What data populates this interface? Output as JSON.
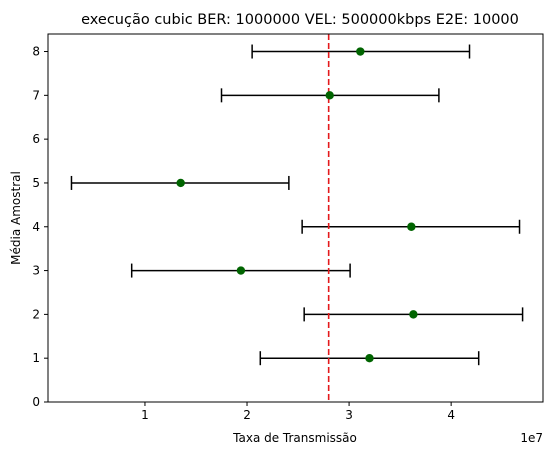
{
  "chart_data": {
    "type": "scatter",
    "title": "execução cubic BER: 1000000 VEL: 500000kbps E2E: 10000",
    "xlabel": "Taxa de Transmissão",
    "ylabel": "Média Amostral",
    "x_offset_label": "1e7",
    "xlim": [
      0.05,
      4.9
    ],
    "ylim": [
      0,
      8.4
    ],
    "x_ticks": [
      1,
      2,
      3,
      4
    ],
    "y_ticks": [
      0,
      1,
      2,
      3,
      4,
      5,
      6,
      7,
      8
    ],
    "x_tick_labels": [
      "1",
      "2",
      "3",
      "4"
    ],
    "y_tick_labels": [
      "0",
      "1",
      "2",
      "3",
      "4",
      "5",
      "6",
      "7",
      "8"
    ],
    "reference_line": {
      "x": 2.8,
      "color": "#e41a1c",
      "style": "dashed"
    },
    "points": [
      {
        "y": 1,
        "mean": 3.2,
        "low": 2.13,
        "high": 4.27
      },
      {
        "y": 2,
        "mean": 3.63,
        "low": 2.56,
        "high": 4.7
      },
      {
        "y": 3,
        "mean": 1.94,
        "low": 0.87,
        "high": 3.01
      },
      {
        "y": 4,
        "mean": 3.61,
        "low": 2.54,
        "high": 4.67
      },
      {
        "y": 5,
        "mean": 1.35,
        "low": 0.28,
        "high": 2.41
      },
      {
        "y": 7,
        "mean": 2.81,
        "low": 1.75,
        "high": 3.88
      },
      {
        "y": 8,
        "mean": 3.11,
        "low": 2.05,
        "high": 4.18
      }
    ],
    "point_color": "#006400",
    "errorbar_color": "#000000",
    "grid": false,
    "legend": "none"
  }
}
